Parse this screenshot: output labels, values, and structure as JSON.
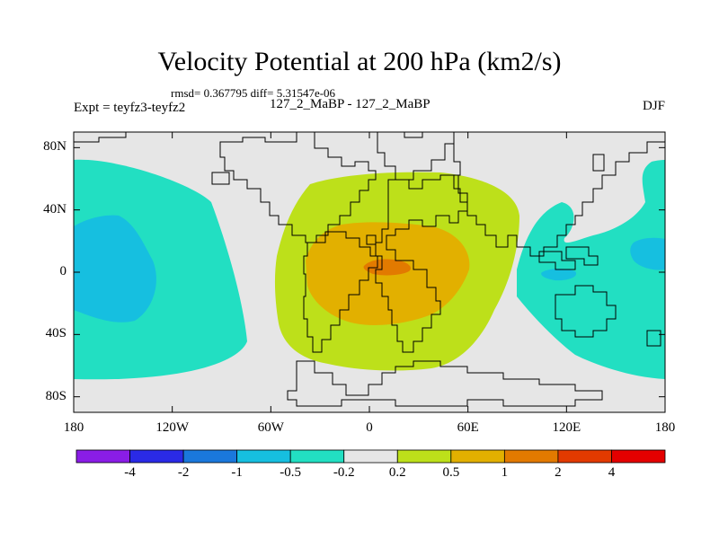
{
  "title": "Velocity Potential at 200 hPa (km2/s)",
  "stats": "rmsd= 0.367795 diff= 5.31547e-06",
  "expt": "Expt = teyfz3-teyfz2",
  "run": "127_2_MaBP - 127_2_MaBP",
  "season": "DJF",
  "map": {
    "lon_range": [
      -180,
      180
    ],
    "lat_range": [
      -90,
      90
    ],
    "y_ticks": [
      {
        "value": 80,
        "label": "80N"
      },
      {
        "value": 40,
        "label": "40N"
      },
      {
        "value": 0,
        "label": "0"
      },
      {
        "value": -40,
        "label": "40S"
      },
      {
        "value": -80,
        "label": "80S"
      }
    ],
    "x_ticks": [
      {
        "value": -180,
        "label": "180"
      },
      {
        "value": -120,
        "label": "120W"
      },
      {
        "value": -60,
        "label": "60W"
      },
      {
        "value": 0,
        "label": "0"
      },
      {
        "value": 60,
        "label": "60E"
      },
      {
        "value": 120,
        "label": "120E"
      },
      {
        "value": 180,
        "label": "180"
      }
    ],
    "background_color": "#e6e6e6"
  },
  "colorbar": {
    "colors": [
      "#8a1de6",
      "#2a2ae6",
      "#1a78dc",
      "#16bfe0",
      "#22dfc2",
      "#e6e6e6",
      "#bde01a",
      "#e2b000",
      "#e27a00",
      "#e23a00",
      "#e40000"
    ],
    "labels": [
      "-4",
      "-2",
      "-1",
      "-0.5",
      "-0.2",
      "0.2",
      "0.5",
      "1",
      "2",
      "4"
    ]
  },
  "chart_data": {
    "type": "heatmap",
    "title": "Velocity Potential at 200 hPa (km2/s)",
    "subtitle": "rmsd= 0.367795 diff= 5.31547e-06",
    "xlabel": "",
    "ylabel": "",
    "xlim": [
      -180,
      180
    ],
    "ylim": [
      -90,
      90
    ],
    "levels": [
      -4,
      -2,
      -1,
      -0.5,
      -0.2,
      0.2,
      0.5,
      1,
      2,
      4
    ],
    "features": [
      {
        "name": "west Pacific negative lobe",
        "value": -0.3,
        "lon_range": [
          -180,
          -95
        ],
        "lat_range": [
          -70,
          65
        ]
      },
      {
        "name": "west Pacific core",
        "value": -0.7,
        "lon_range": [
          -175,
          -130
        ],
        "lat_range": [
          -35,
          20
        ]
      },
      {
        "name": "Atlantic/Africa positive outer",
        "value": 0.3,
        "lon_range": [
          -55,
          90
        ],
        "lat_range": [
          -65,
          55
        ]
      },
      {
        "name": "Atlantic/Africa positive mid",
        "value": 0.7,
        "lon_range": [
          -40,
          60
        ],
        "lat_range": [
          -35,
          25
        ]
      },
      {
        "name": "Atlantic/Africa positive core",
        "value": 1.2,
        "lon_range": [
          -3,
          25
        ],
        "lat_range": [
          -5,
          3
        ]
      },
      {
        "name": "east Asia/Pacific negative",
        "value": -0.3,
        "lon_range": [
          100,
          180
        ],
        "lat_range": [
          -70,
          65
        ]
      },
      {
        "name": "east Pacific negative core",
        "value": -0.6,
        "lon_range": [
          170,
          180
        ],
        "lat_range": [
          -10,
          15
        ]
      }
    ]
  }
}
